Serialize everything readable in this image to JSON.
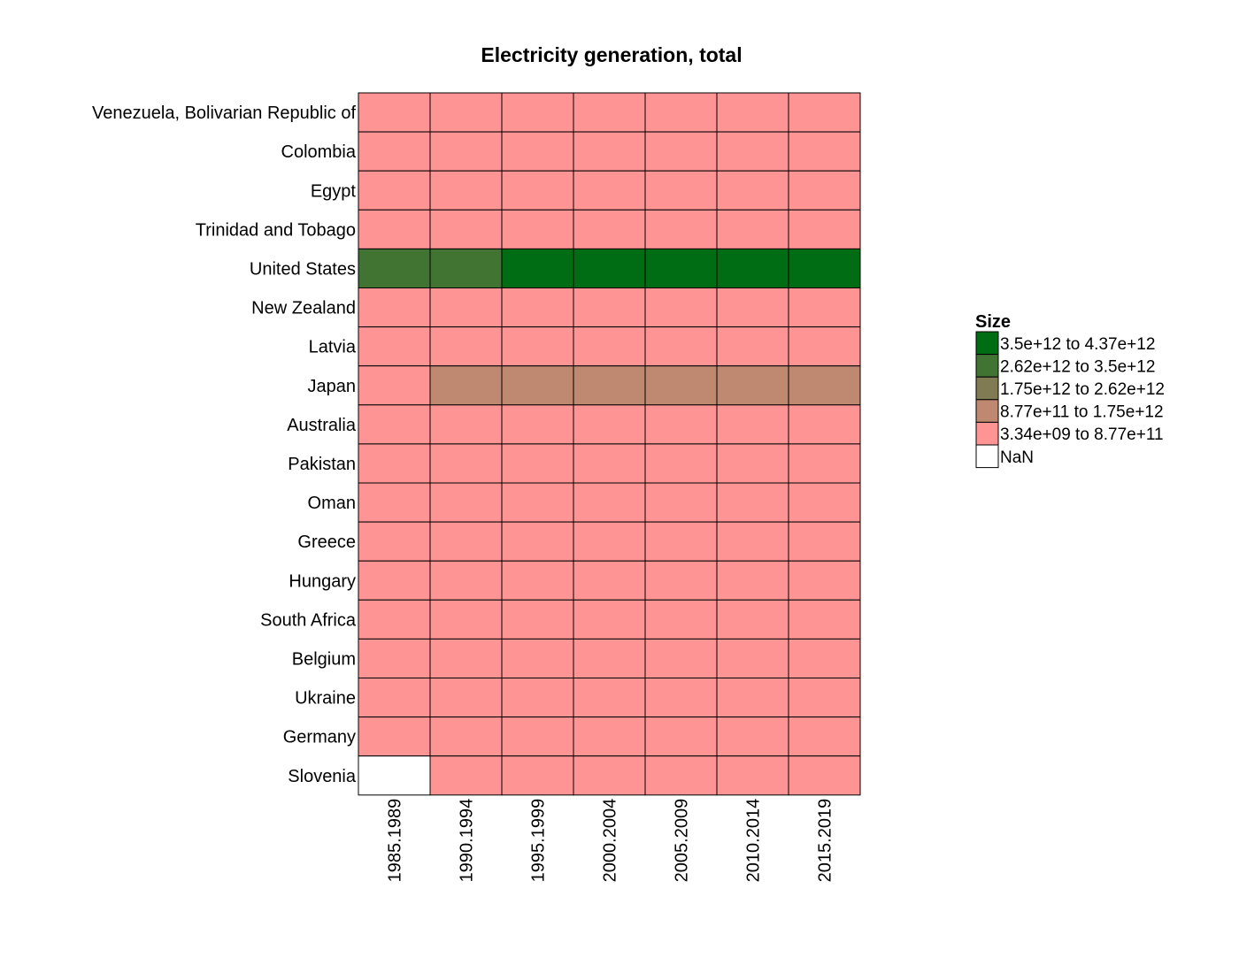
{
  "chart_data": {
    "type": "heatmap",
    "title": "Electricity generation, total",
    "rows": [
      "Venezuela, Bolivarian Republic of",
      "Colombia",
      "Egypt",
      "Trinidad and Tobago",
      "United States",
      "New Zealand",
      "Latvia",
      "Japan",
      "Australia",
      "Pakistan",
      "Oman",
      "Greece",
      "Hungary",
      "South Africa",
      "Belgium",
      "Ukraine",
      "Germany",
      "Slovenia"
    ],
    "columns": [
      "1985.1989",
      "1990.1994",
      "1995.1999",
      "2000.2004",
      "2005.2009",
      "2010.2014",
      "2015.2019"
    ],
    "bins": [
      [
        0,
        0,
        0,
        0,
        0,
        0,
        0
      ],
      [
        0,
        0,
        0,
        0,
        0,
        0,
        0
      ],
      [
        0,
        0,
        0,
        0,
        0,
        0,
        0
      ],
      [
        0,
        0,
        0,
        0,
        0,
        0,
        0
      ],
      [
        3,
        3,
        4,
        4,
        4,
        4,
        4
      ],
      [
        0,
        0,
        0,
        0,
        0,
        0,
        0
      ],
      [
        0,
        0,
        0,
        0,
        0,
        0,
        0
      ],
      [
        0,
        1,
        1,
        1,
        1,
        1,
        1
      ],
      [
        0,
        0,
        0,
        0,
        0,
        0,
        0
      ],
      [
        0,
        0,
        0,
        0,
        0,
        0,
        0
      ],
      [
        0,
        0,
        0,
        0,
        0,
        0,
        0
      ],
      [
        0,
        0,
        0,
        0,
        0,
        0,
        0
      ],
      [
        0,
        0,
        0,
        0,
        0,
        0,
        0
      ],
      [
        0,
        0,
        0,
        0,
        0,
        0,
        0
      ],
      [
        0,
        0,
        0,
        0,
        0,
        0,
        0
      ],
      [
        0,
        0,
        0,
        0,
        0,
        0,
        0
      ],
      [
        0,
        0,
        0,
        0,
        0,
        0,
        0
      ],
      [
        -1,
        0,
        0,
        0,
        0,
        0,
        0
      ]
    ],
    "legend": {
      "title": "Size",
      "entries": [
        {
          "bin": 4,
          "from": "3.5e+12",
          "sep": "to",
          "to": "4.37e+12",
          "color": "#006d14"
        },
        {
          "bin": 3,
          "from": "2.62e+12",
          "sep": "to",
          "to": "3.5e+12",
          "color": "#417333"
        },
        {
          "bin": 2,
          "from": "1.75e+12",
          "sep": "to",
          "to": "2.62e+12",
          "color": "#807b52"
        },
        {
          "bin": 1,
          "from": "8.77e+11",
          "sep": "to",
          "to": "1.75e+12",
          "color": "#bf8871"
        },
        {
          "bin": 0,
          "from": "3.34e+09",
          "sep": "to",
          "to": "8.77e+11",
          "color": "#ff9494"
        },
        {
          "bin": -1,
          "label": "NaN",
          "color": "#ffffff"
        }
      ]
    }
  }
}
